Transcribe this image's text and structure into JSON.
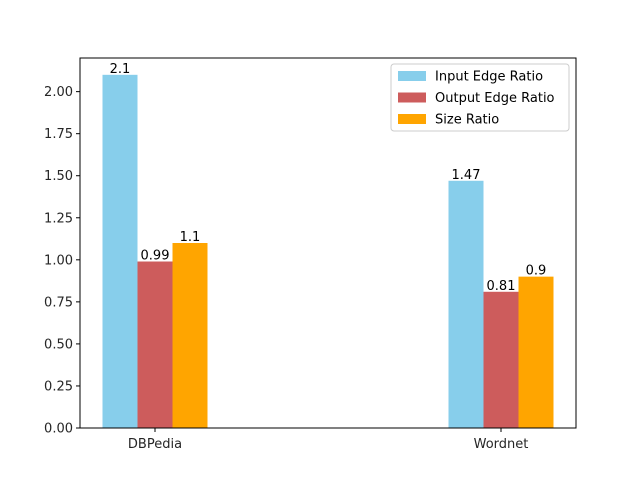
{
  "chart_data": {
    "type": "bar",
    "categories": [
      "DBPedia",
      "Wordnet"
    ],
    "series": [
      {
        "name": "Input Edge Ratio",
        "values": [
          2.1,
          1.47
        ],
        "labels": [
          "2.1",
          "1.47"
        ],
        "color": "#87ceeb"
      },
      {
        "name": "Output Edge Ratio",
        "values": [
          0.99,
          0.81
        ],
        "labels": [
          "0.99",
          "0.81"
        ],
        "color": "#cd5c5c"
      },
      {
        "name": "Size Ratio",
        "values": [
          1.1,
          0.9
        ],
        "labels": [
          "1.1",
          "0.9"
        ],
        "color": "#ffa500"
      }
    ],
    "yticks": [
      "0.00",
      "0.25",
      "0.50",
      "0.75",
      "1.00",
      "1.25",
      "1.50",
      "1.75",
      "2.00"
    ],
    "ylim": [
      0,
      2.2
    ],
    "title": "",
    "xlabel": "",
    "ylabel": "",
    "grid": false,
    "legend_position": "top-right"
  }
}
